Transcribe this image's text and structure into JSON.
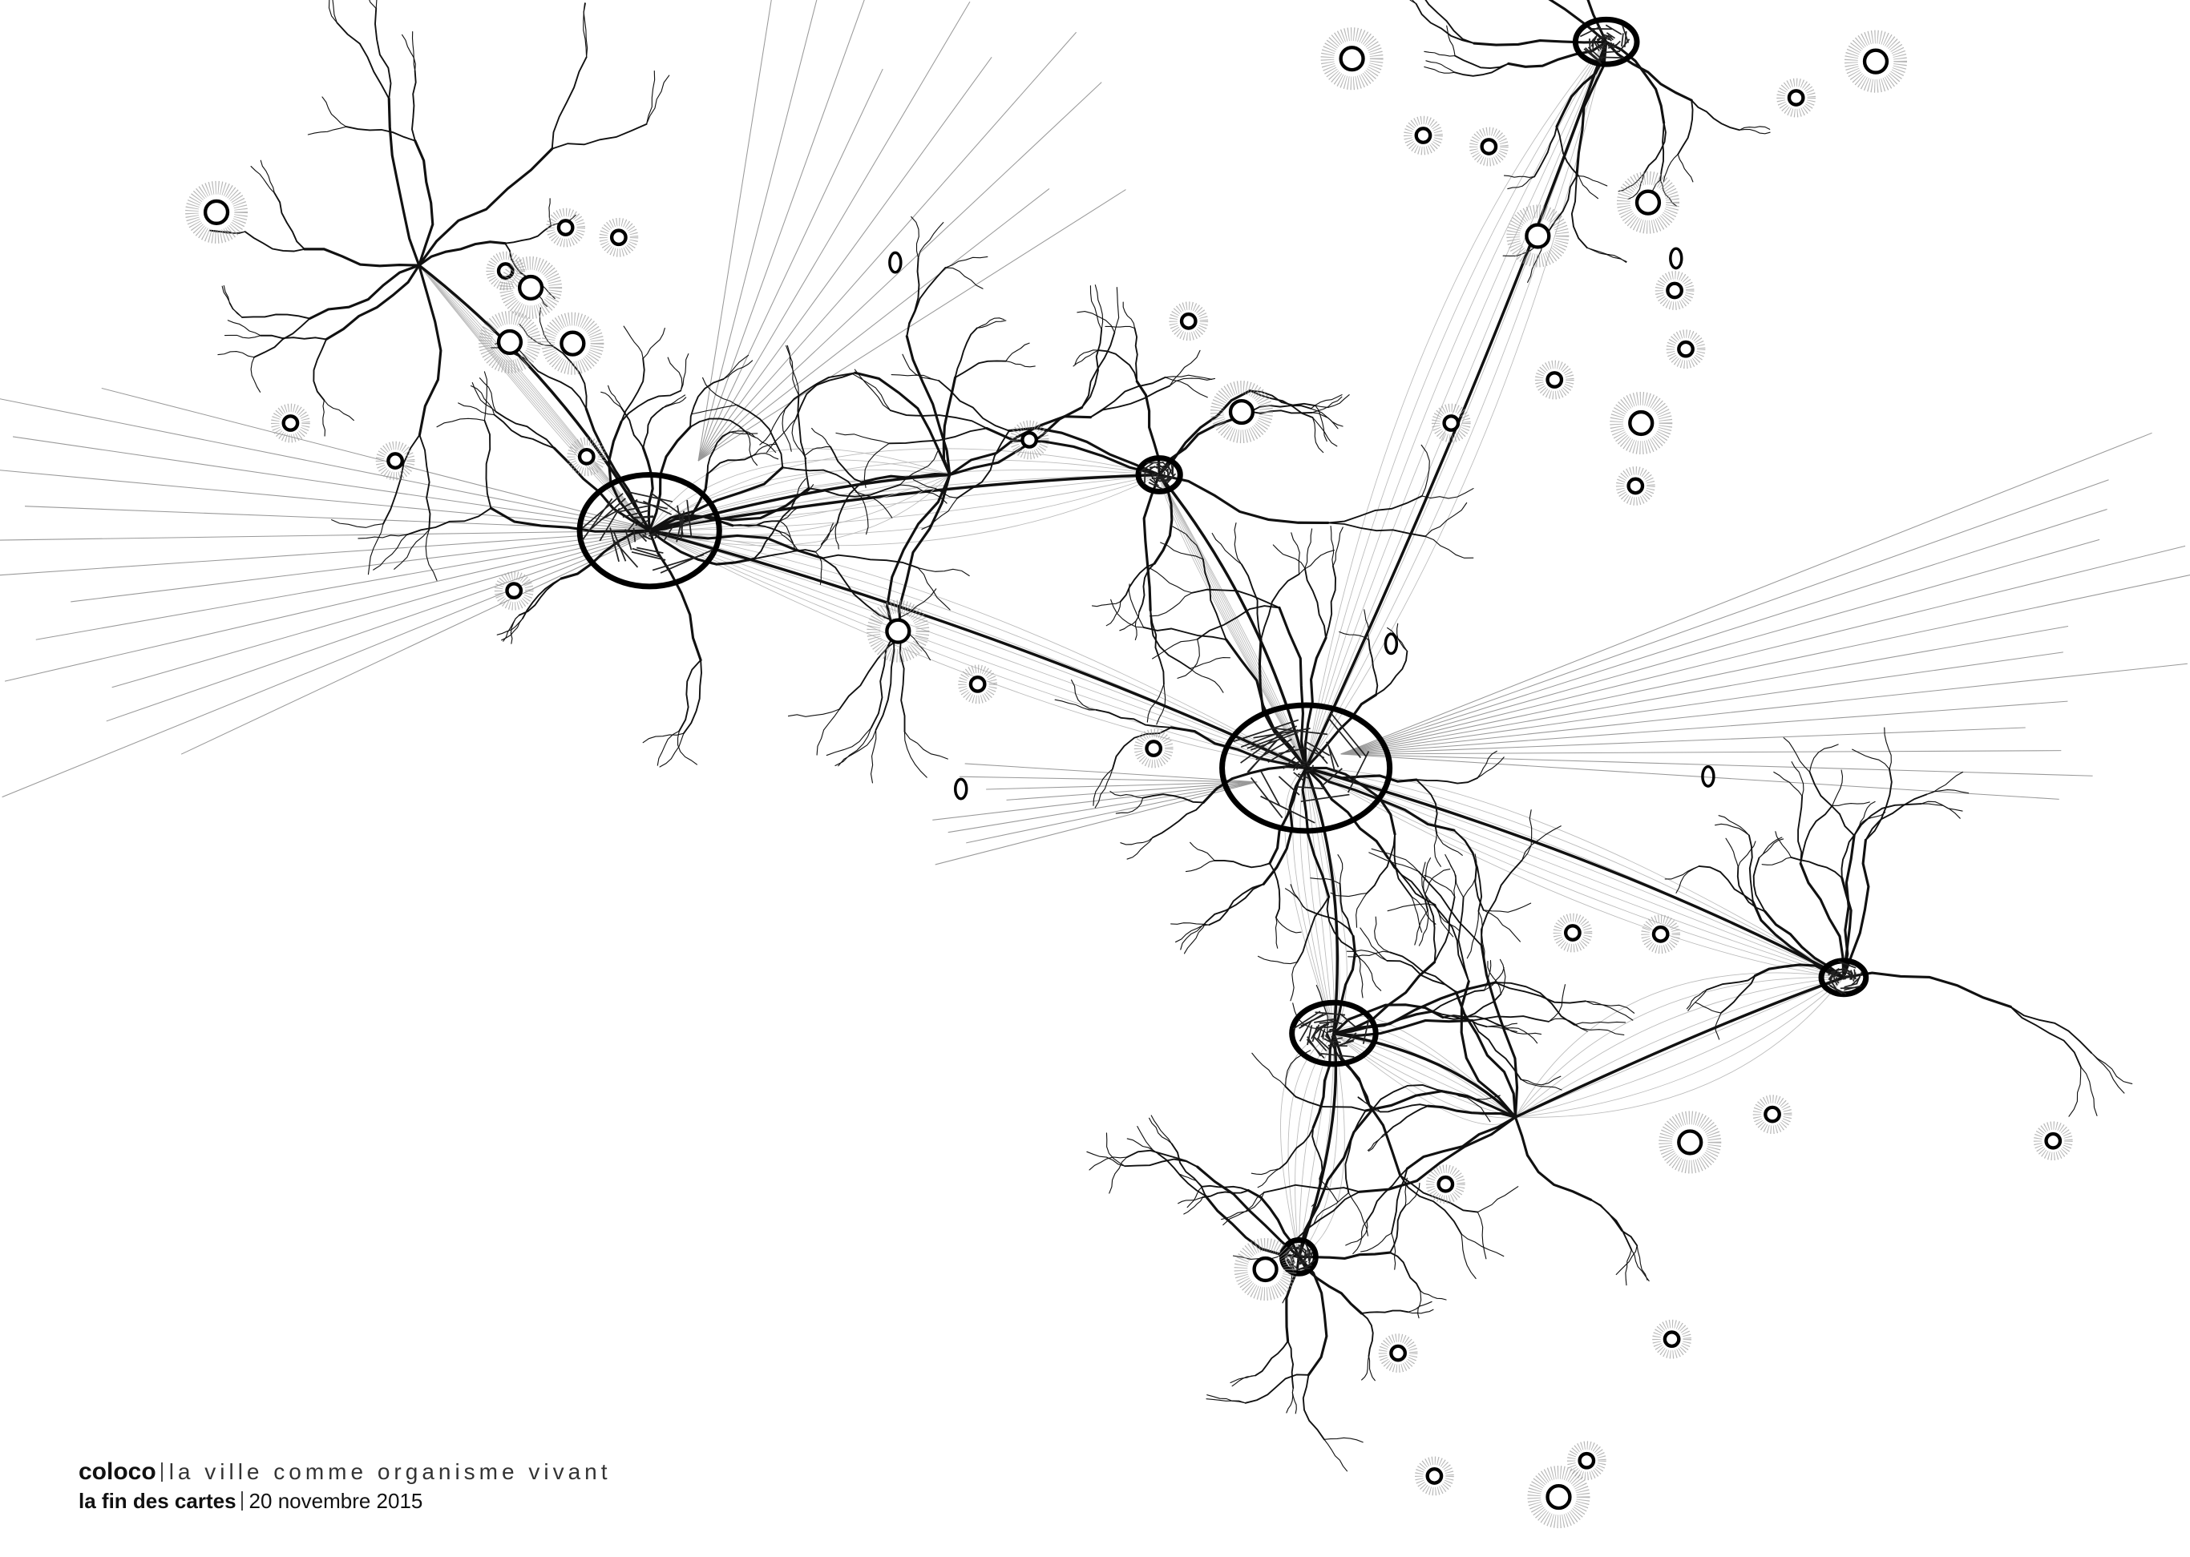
{
  "caption": {
    "brand": "coloco",
    "tagline": "la ville comme organisme vivant",
    "event": "la fin des cartes",
    "date": "20 novembre 2015"
  }
}
